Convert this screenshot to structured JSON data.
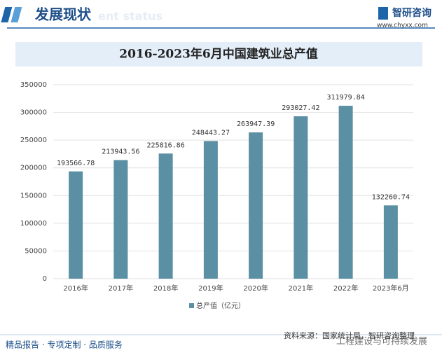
{
  "header": {
    "title": "发展现状",
    "watermark": "ent status",
    "logo": "智研咨询",
    "site": "www.chyxx.com"
  },
  "footer": {
    "slogan": "精品报告 · 专项定制 · 品质服务",
    "source": "资料来源：国家统计局，智研咨询整理",
    "wechat": "工程建设与可持续发展"
  },
  "chart_data": {
    "type": "bar",
    "title": "2016-2023年6月中国建筑业总产值",
    "categories": [
      "2016年",
      "2017年",
      "2018年",
      "2019年",
      "2020年",
      "2021年",
      "2022年",
      "2023年6月"
    ],
    "series": [
      {
        "name": "总产值（亿元）",
        "color": "#5b8fa3",
        "values": [
          193566.78,
          213943.56,
          225816.86,
          248443.27,
          263947.39,
          293027.42,
          311979.84,
          132260.74
        ]
      }
    ],
    "ylim": [
      0,
      350000
    ],
    "yticks": [
      0,
      50000,
      100000,
      150000,
      200000,
      250000,
      300000,
      350000
    ],
    "grid": true,
    "legend": "bottom"
  }
}
